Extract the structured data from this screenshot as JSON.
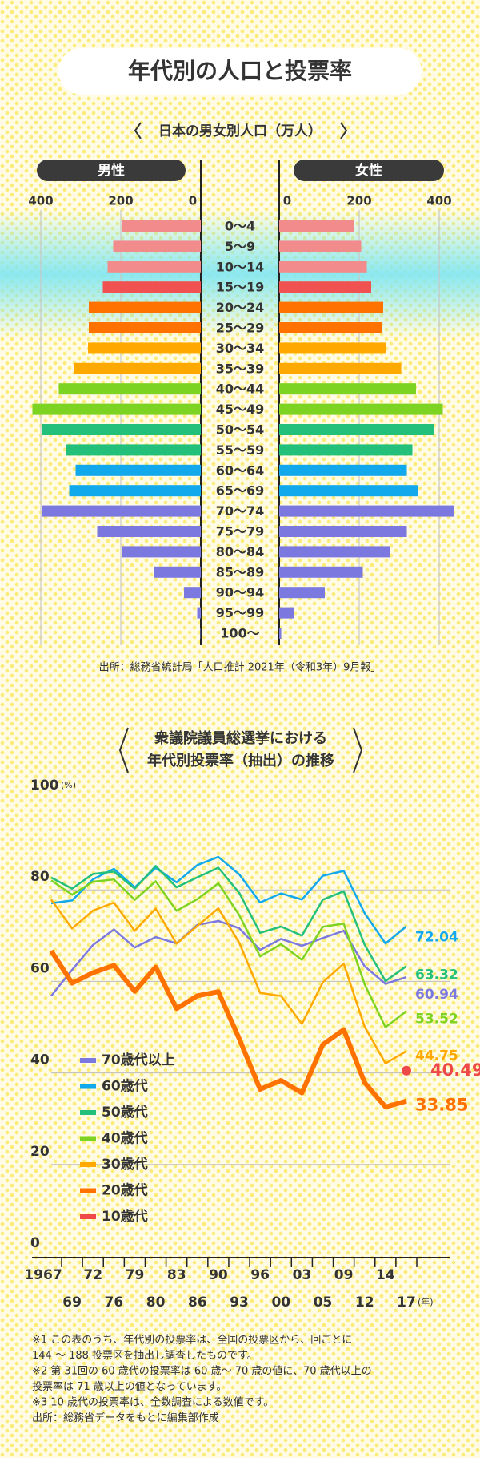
{
  "title": "年代別の人口と投票率",
  "chart_data": [
    {
      "type": "pyramid",
      "title": "日本の男女別人口（万人）",
      "categories": [
        "0～4",
        "5～9",
        "10～14",
        "15～19",
        "20～24",
        "25～29",
        "30～34",
        "35～39",
        "40～44",
        "45～49",
        "50～54",
        "55～59",
        "60～64",
        "65～69",
        "70～74",
        "75～79",
        "80～84",
        "85～89",
        "90～94",
        "95～99",
        "100～"
      ],
      "colors": [
        "#f28b8b",
        "#f28b8b",
        "#f28b8b",
        "#f05252",
        "#ff7200",
        "#ff7200",
        "#ffa800",
        "#ffa800",
        "#7dd321",
        "#7dd321",
        "#22c07a",
        "#22c07a",
        "#12a8ec",
        "#12a8ec",
        "#7b78e0",
        "#7b78e0",
        "#7b78e0",
        "#7b78e0",
        "#7b78e0",
        "#7b78e0",
        "#7b78e0"
      ],
      "series": [
        {
          "name": "男性",
          "values": [
            198,
            219,
            233,
            245,
            280,
            280,
            282,
            318,
            355,
            421,
            398,
            336,
            313,
            329,
            398,
            259,
            198,
            118,
            42,
            9,
            1
          ]
        },
        {
          "name": "女性",
          "values": [
            186,
            205,
            219,
            230,
            260,
            258,
            267,
            305,
            342,
            409,
            388,
            333,
            319,
            347,
            437,
            319,
            277,
            209,
            114,
            37,
            5
          ]
        }
      ],
      "xlim": [
        0,
        450
      ],
      "xticks": [
        0,
        200,
        400
      ],
      "grid": true,
      "source": "出所：総務省統計局「人口推計 2021年（令和3年）9月報」"
    },
    {
      "type": "line",
      "title": [
        "衆議院議員総選挙における",
        "年代別投票率（抽出）の推移"
      ],
      "categories": [
        "1967",
        "69",
        "72",
        "76",
        "79",
        "80",
        "83",
        "86",
        "90",
        "93",
        "96",
        "00",
        "03",
        "05",
        "09",
        "12",
        "14",
        "17"
      ],
      "xlabel": "(年)",
      "ylabel": "(%)",
      "ylim": [
        0,
        100
      ],
      "yticks": [
        0,
        20,
        40,
        60,
        80,
        100
      ],
      "grid": true,
      "series": [
        {
          "name": "70歳代以上",
          "color": "#7b78e0",
          "values": [
            56.83,
            62.52,
            67.96,
            71.35,
            67.4,
            69.69,
            68.29,
            72.36,
            73.21,
            71.61,
            66.88,
            69.28,
            67.78,
            69.48,
            71.06,
            63.3,
            59.46,
            60.94
          ]
        },
        {
          "name": "60歳代",
          "color": "#12a8ec",
          "values": [
            77.08,
            77.7,
            82.32,
            84.59,
            80.56,
            84.82,
            81.64,
            85.43,
            87.21,
            83.38,
            77.25,
            79.23,
            77.89,
            83.08,
            84.15,
            74.93,
            68.28,
            72.04
          ]
        },
        {
          "name": "50歳代",
          "color": "#22c07a",
          "values": [
            82.68,
            80.27,
            83.48,
            84.0,
            80.29,
            85.23,
            80.56,
            82.74,
            84.85,
            79.34,
            70.61,
            71.98,
            70.01,
            77.86,
            79.69,
            68.02,
            60.07,
            63.32
          ]
        },
        {
          "name": "40歳代",
          "color": "#7dd321",
          "values": [
            82.07,
            78.94,
            81.79,
            82.28,
            77.81,
            81.88,
            75.43,
            77.99,
            81.44,
            74.48,
            65.46,
            68.13,
            64.72,
            71.94,
            72.63,
            59.38,
            49.98,
            53.52
          ]
        },
        {
          "name": "30歳代",
          "color": "#ffa800",
          "values": [
            77.88,
            71.57,
            75.47,
            77.21,
            71.06,
            75.92,
            68.25,
            72.15,
            75.97,
            68.46,
            57.49,
            56.82,
            50.72,
            59.79,
            63.87,
            50.1,
            42.09,
            44.75
          ]
        },
        {
          "name": "20歳代",
          "color": "#ff7200",
          "values": [
            66.69,
            59.61,
            61.89,
            63.5,
            57.82,
            63.13,
            54.07,
            56.86,
            57.76,
            47.46,
            36.42,
            38.35,
            35.62,
            46.2,
            49.45,
            37.89,
            32.58,
            33.85
          ]
        },
        {
          "name": "10歳代",
          "color": "#ef4848",
          "values": [
            null,
            null,
            null,
            null,
            null,
            null,
            null,
            null,
            null,
            null,
            null,
            null,
            null,
            null,
            null,
            null,
            null,
            40.49
          ]
        }
      ],
      "notes": [
        "※1 この表のうち、年代別の投票率は、全国の投票区から、回ごとに",
        "144 ～ 188 投票区を抽出し調査したものです。",
        "※2 第 31回の 60 歳代の投票率は 60 歳～ 70 歳の値に、70 歳代以上の",
        "投票率は 71 歳以上の値となっています。",
        "※3 10 歳代の投票率は、全数調査による数値です。",
        "出所：総務省データをもとに編集部作成"
      ]
    }
  ]
}
